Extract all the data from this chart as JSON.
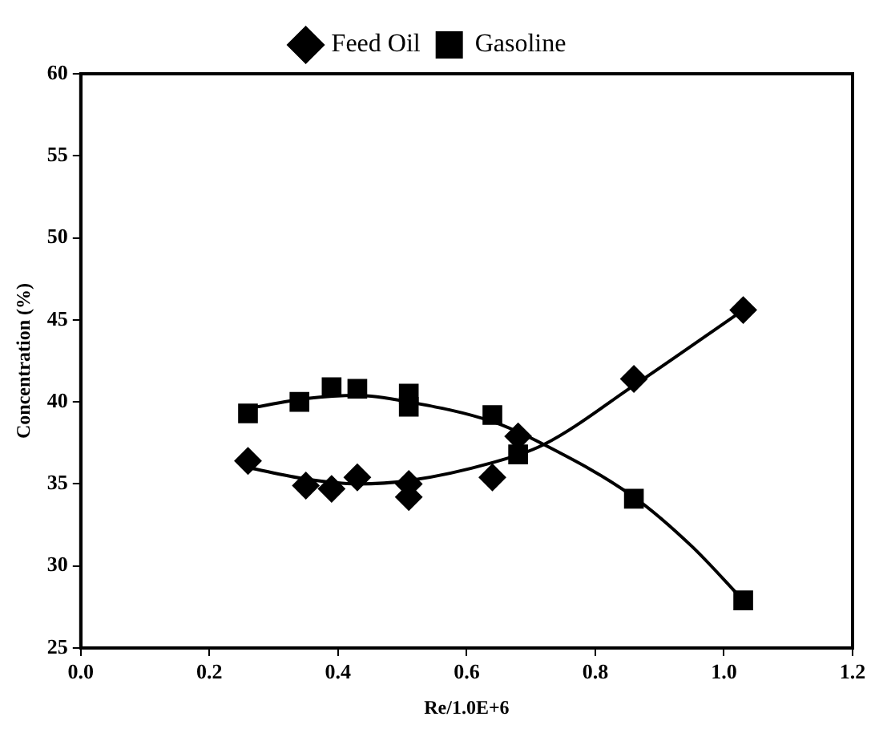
{
  "chart_data": {
    "type": "scatter",
    "xlabel": "Re/1.0E+6",
    "ylabel": "Concentration (%)",
    "xlim": [
      0,
      1.2
    ],
    "xticks": [
      {
        "value": 0,
        "label": "0.0"
      },
      0.2,
      0.4,
      0.6,
      0.8,
      {
        "value": 1,
        "label": "1.0"
      },
      1.2
    ],
    "ylim": [
      25,
      60
    ],
    "yticks": [
      25,
      30,
      35,
      40,
      45,
      50,
      55,
      60
    ],
    "grid": false,
    "legend": "top",
    "series": [
      {
        "name": "Feed Oil",
        "color": "#000000",
        "marker": "diamond",
        "x": [
          0.26,
          0.35,
          0.39,
          0.43,
          0.51,
          0.51,
          0.64,
          0.68,
          0.86,
          1.03
        ],
        "values": [
          36.4,
          34.9,
          34.7,
          35.4,
          35.0,
          34.2,
          35.4,
          37.9,
          41.4,
          45.6
        ]
      },
      {
        "name": "Gasoline",
        "color": "#000000",
        "marker": "square",
        "x": [
          0.26,
          0.34,
          0.39,
          0.43,
          0.51,
          0.51,
          0.64,
          0.68,
          0.86,
          1.03
        ],
        "values": [
          39.3,
          40.0,
          40.9,
          40.8,
          40.5,
          39.7,
          39.2,
          36.8,
          34.1,
          27.9
        ]
      },
      {
        "type": "line",
        "color": "#000000",
        "marker": "none",
        "x": [
          0.26,
          0.35,
          0.43,
          0.51,
          0.64,
          0.72,
          0.86,
          1.03
        ],
        "values": [
          36.0,
          35.3,
          35.0,
          35.2,
          36.3,
          37.4,
          41.0,
          45.6
        ]
      },
      {
        "type": "line",
        "color": "#000000",
        "marker": "none",
        "x": [
          0.26,
          0.35,
          0.43,
          0.51,
          0.64,
          0.72,
          0.86,
          0.95,
          1.03
        ],
        "values": [
          39.6,
          40.2,
          40.4,
          40.0,
          38.8,
          37.4,
          34.2,
          31.2,
          27.9
        ]
      }
    ]
  }
}
